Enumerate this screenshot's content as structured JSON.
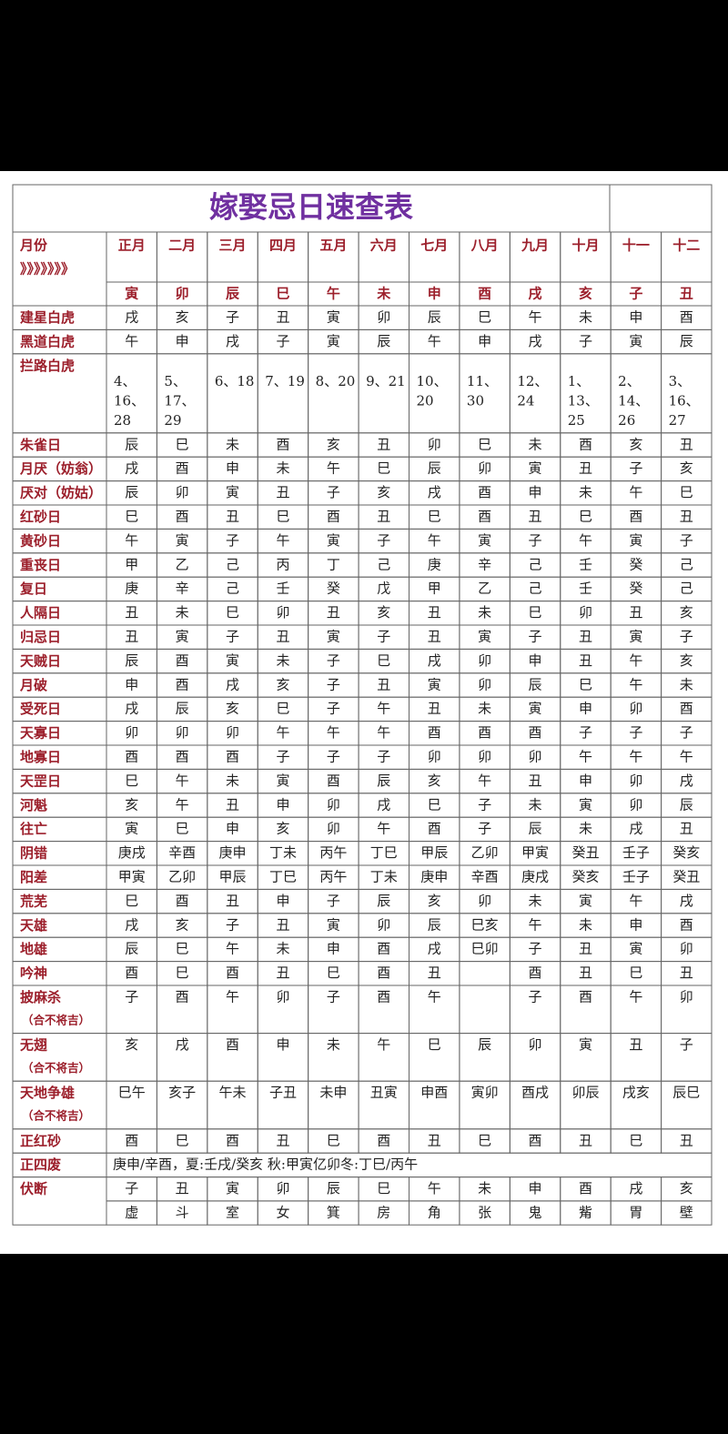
{
  "title": "嫁娶忌日速查表",
  "header": {
    "label": "月份",
    "arrows": "》》》》》》》",
    "months": [
      "正月",
      "二月",
      "三月",
      "四月",
      "五月",
      "六月",
      "七月",
      "八月",
      "九月",
      "十月",
      "十一",
      "十二"
    ],
    "branches": [
      "寅",
      "卯",
      "辰",
      "巳",
      "午",
      "未",
      "申",
      "酉",
      "戌",
      "亥",
      "子",
      "丑"
    ]
  },
  "rows": [
    {
      "label": "建星白虎",
      "cells": [
        "戌",
        "亥",
        "子",
        "丑",
        "寅",
        "卯",
        "辰",
        "巳",
        "午",
        "未",
        "申",
        "酉"
      ]
    },
    {
      "label": "黑道白虎",
      "cells": [
        "午",
        "申",
        "戌",
        "子",
        "寅",
        "辰",
        "午",
        "申",
        "戌",
        "子",
        "寅",
        "辰"
      ]
    },
    {
      "label": "拦路白虎",
      "cells": [
        "4、16、28",
        "5、17、29",
        "6、18",
        "7、19",
        "8、20",
        "9、21",
        "10、20",
        "11、30",
        "12、24",
        "1、13、25",
        "2、14、26",
        "3、16、27"
      ]
    },
    {
      "label": "朱雀日",
      "cells": [
        "辰",
        "巳",
        "未",
        "酉",
        "亥",
        "丑",
        "卯",
        "巳",
        "未",
        "酉",
        "亥",
        "丑"
      ]
    },
    {
      "label": "月厌（妨翁）",
      "cells": [
        "戌",
        "酉",
        "申",
        "未",
        "午",
        "巳",
        "辰",
        "卯",
        "寅",
        "丑",
        "子",
        "亥"
      ]
    },
    {
      "label": "厌对（妨姑）",
      "cells": [
        "辰",
        "卯",
        "寅",
        "丑",
        "子",
        "亥",
        "戌",
        "酉",
        "申",
        "未",
        "午",
        "巳"
      ]
    },
    {
      "label": "红砂日",
      "cells": [
        "巳",
        "酉",
        "丑",
        "巳",
        "酉",
        "丑",
        "巳",
        "酉",
        "丑",
        "巳",
        "酉",
        "丑"
      ]
    },
    {
      "label": "黄砂日",
      "cells": [
        "午",
        "寅",
        "子",
        "午",
        "寅",
        "子",
        "午",
        "寅",
        "子",
        "午",
        "寅",
        "子"
      ]
    },
    {
      "label": "重丧日",
      "cells": [
        "甲",
        "乙",
        "己",
        "丙",
        "丁",
        "己",
        "庚",
        "辛",
        "己",
        "壬",
        "癸",
        "己"
      ]
    },
    {
      "label": "复日",
      "cells": [
        "庚",
        "辛",
        "己",
        "壬",
        "癸",
        "戊",
        "甲",
        "乙",
        "己",
        "壬",
        "癸",
        "己"
      ]
    },
    {
      "label": "人隔日",
      "cells": [
        "丑",
        "未",
        "巳",
        "卯",
        "丑",
        "亥",
        "丑",
        "未",
        "巳",
        "卯",
        "丑",
        "亥"
      ]
    },
    {
      "label": "归忌日",
      "cells": [
        "丑",
        "寅",
        "子",
        "丑",
        "寅",
        "子",
        "丑",
        "寅",
        "子",
        "丑",
        "寅",
        "子"
      ]
    },
    {
      "label": "天贼日",
      "cells": [
        "辰",
        "酉",
        "寅",
        "未",
        "子",
        "巳",
        "戌",
        "卯",
        "申",
        "丑",
        "午",
        "亥"
      ]
    },
    {
      "label": "月破",
      "cells": [
        "申",
        "酉",
        "戌",
        "亥",
        "子",
        "丑",
        "寅",
        "卯",
        "辰",
        "巳",
        "午",
        "未"
      ]
    },
    {
      "label": "受死日",
      "cells": [
        "戌",
        "辰",
        "亥",
        "巳",
        "子",
        "午",
        "丑",
        "未",
        "寅",
        "申",
        "卯",
        "酉"
      ]
    },
    {
      "label": "天寡日",
      "cells": [
        "卯",
        "卯",
        "卯",
        "午",
        "午",
        "午",
        "酉",
        "酉",
        "酉",
        "子",
        "子",
        "子"
      ]
    },
    {
      "label": "地寡日",
      "cells": [
        "酉",
        "酉",
        "酉",
        "子",
        "子",
        "子",
        "卯",
        "卯",
        "卯",
        "午",
        "午",
        "午"
      ]
    },
    {
      "label": "天罡日",
      "cells": [
        "巳",
        "午",
        "未",
        "寅",
        "酉",
        "辰",
        "亥",
        "午",
        "丑",
        "申",
        "卯",
        "戌"
      ]
    },
    {
      "label": "河魁",
      "cells": [
        "亥",
        "午",
        "丑",
        "申",
        "卯",
        "戌",
        "巳",
        "子",
        "未",
        "寅",
        "卯",
        "辰"
      ]
    },
    {
      "label": "往亡",
      "cells": [
        "寅",
        "巳",
        "申",
        "亥",
        "卯",
        "午",
        "酉",
        "子",
        "辰",
        "未",
        "戌",
        "丑"
      ]
    },
    {
      "label": "阴错",
      "cells": [
        "庚戌",
        "辛酉",
        "庚申",
        "丁未",
        "丙午",
        "丁巳",
        "甲辰",
        "乙卯",
        "甲寅",
        "癸丑",
        "壬子",
        "癸亥"
      ]
    },
    {
      "label": "阳差",
      "cells": [
        "甲寅",
        "乙卯",
        "甲辰",
        "丁巳",
        "丙午",
        "丁未",
        "庚申",
        "辛酉",
        "庚戌",
        "癸亥",
        "壬子",
        "癸丑"
      ]
    },
    {
      "label": "荒芜",
      "cells": [
        "巳",
        "酉",
        "丑",
        "申",
        "子",
        "辰",
        "亥",
        "卯",
        "未",
        "寅",
        "午",
        "戌"
      ]
    },
    {
      "label": "天雄",
      "cells": [
        "戌",
        "亥",
        "子",
        "丑",
        "寅",
        "卯",
        "辰",
        "巳亥",
        "午",
        "未",
        "申",
        "酉"
      ]
    },
    {
      "label": "地雄",
      "cells": [
        "辰",
        "巳",
        "午",
        "未",
        "申",
        "酉",
        "戌",
        "巳卯",
        "子",
        "丑",
        "寅",
        "卯"
      ]
    },
    {
      "label": "吟神",
      "cells": [
        "酉",
        "巳",
        "酉",
        "丑",
        "巳",
        "酉",
        "丑",
        null,
        "酉",
        "丑",
        "巳",
        "丑"
      ]
    },
    {
      "label": "披麻杀",
      "note": "（合不将吉）",
      "cells": [
        "子",
        "酉",
        "午",
        "卯",
        "子",
        "酉",
        "午",
        null,
        "子",
        "酉",
        "午",
        "卯"
      ]
    },
    {
      "label": "无翅",
      "note": "（合不将吉）",
      "cells": [
        "亥",
        "戌",
        "酉",
        "申",
        "未",
        "午",
        "巳",
        "辰",
        "卯",
        "寅",
        "丑",
        "子"
      ]
    },
    {
      "label": "天地争雄",
      "note": "（合不将吉）",
      "cells": [
        "巳午",
        "亥子",
        "午未",
        "子丑",
        "未申",
        "丑寅",
        "申酉",
        "寅卯",
        "酉戌",
        "卯辰",
        "戌亥",
        "辰巳"
      ]
    },
    {
      "label": "正红砂",
      "cells": [
        "酉",
        "巳",
        "酉",
        "丑",
        "巳",
        "酉",
        "丑",
        "巳",
        "酉",
        "丑",
        "巳",
        "丑"
      ]
    },
    {
      "label": "正四废",
      "text": "庚申/辛酉，夏:壬戌/癸亥 秋:甲寅亿卯冬:丁巳/丙午"
    },
    {
      "label": "伏断",
      "cells": [
        "子",
        "丑",
        "寅",
        "卯",
        "辰",
        "巳",
        "午",
        "未",
        "申",
        "酉",
        "戌",
        "亥"
      ],
      "cells2": [
        "虚",
        "斗",
        "室",
        "女",
        "箕",
        "房",
        "角",
        "张",
        "鬼",
        "觜",
        "胃",
        "壁"
      ]
    }
  ]
}
